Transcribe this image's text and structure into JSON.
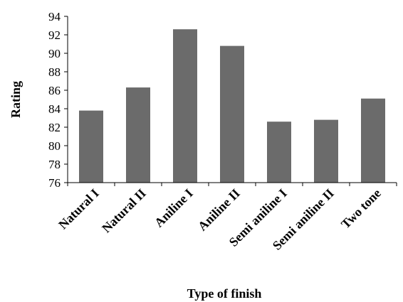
{
  "chart_data": {
    "type": "bar",
    "categories": [
      "Natural I",
      "Natural II",
      "Aniline I",
      "Aniline II",
      "Semi aniline I",
      "Semi aniline II",
      "Two tone"
    ],
    "values": [
      83.8,
      86.3,
      92.6,
      90.8,
      82.6,
      82.8,
      85.1
    ],
    "title": "",
    "xlabel": "Type of finish",
    "ylabel": "Rating",
    "ylim": [
      76,
      94
    ],
    "yticks": [
      76,
      78,
      80,
      82,
      84,
      86,
      88,
      90,
      92,
      94
    ],
    "grid": false,
    "legend": "none",
    "bar_color": "#6b6b6b"
  }
}
